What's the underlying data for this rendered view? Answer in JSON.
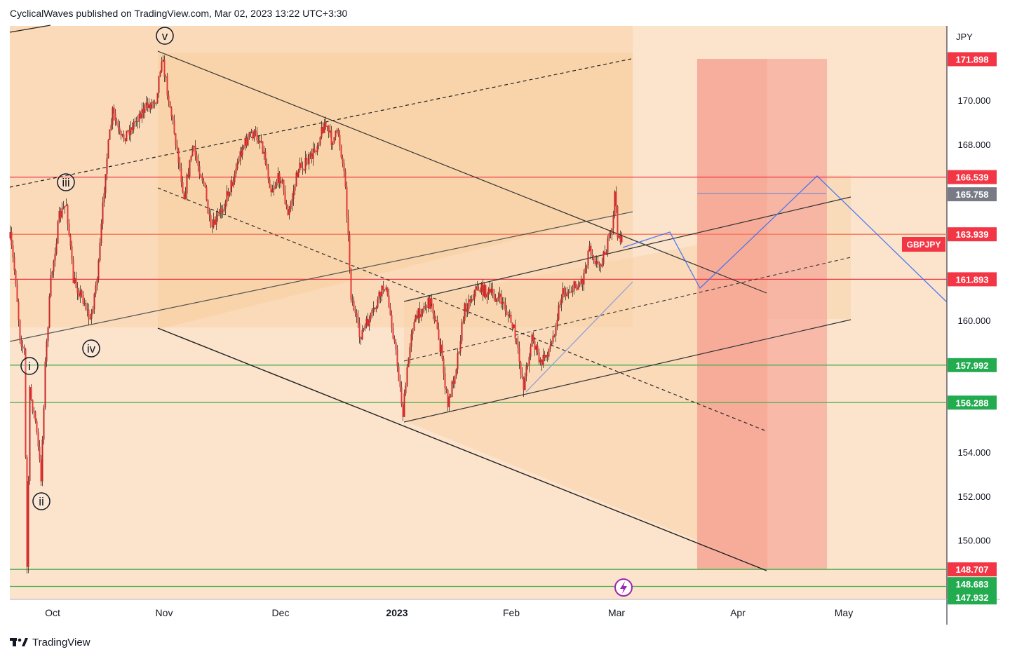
{
  "header": {
    "author": "CyclicalWaves",
    "published_text": "CyclicalWaves published on TradingView.com, Mar 02, 2023 13:22 UTC+3:30"
  },
  "footer": {
    "brand": "TradingView"
  },
  "chart_data": {
    "type": "candlestick",
    "symbol": "GBPJPY",
    "currency_label": "JPY",
    "x_ticks": [
      "Oct",
      "Nov",
      "Dec",
      "2023",
      "Feb",
      "Mar",
      "Apr",
      "May"
    ],
    "y_ticks": [
      170.0,
      168.0,
      160.0,
      154.0,
      152.0,
      150.0
    ],
    "y_tick_labels": [
      "170.000",
      "168.000",
      "160.000",
      "154.000",
      "152.000",
      "150.000"
    ],
    "ylim": [
      147.9,
      173.0
    ],
    "price_labels": [
      {
        "value": 171.898,
        "label": "171.898",
        "color": "#f23645"
      },
      {
        "value": 166.539,
        "label": "166.539",
        "color": "#f23645"
      },
      {
        "value": 165.758,
        "label": "165.758",
        "color": "#787b86"
      },
      {
        "value": 163.939,
        "label": "163.939",
        "color": "#f23645"
      },
      {
        "value": 161.893,
        "label": "161.893",
        "color": "#f23645"
      },
      {
        "value": 157.992,
        "label": "157.992",
        "color": "#22ab4f"
      },
      {
        "value": 156.288,
        "label": "156.288",
        "color": "#22ab4f"
      },
      {
        "value": 148.707,
        "label": "148.707",
        "color": "#f23645"
      },
      {
        "value": 148.683,
        "label": "148.683",
        "color": "#22ab4f"
      },
      {
        "value": 147.932,
        "label": "147.932",
        "color": "#22ab4f"
      }
    ],
    "horizontal_levels": [
      {
        "value": 166.539,
        "color": "#f23645"
      },
      {
        "value": 163.939,
        "color": "#f7775a"
      },
      {
        "value": 161.893,
        "color": "#f23645"
      },
      {
        "value": 157.992,
        "color": "#4caf50"
      },
      {
        "value": 156.288,
        "color": "#4caf50"
      },
      {
        "value": 148.707,
        "color": "#4caf50"
      },
      {
        "value": 147.932,
        "color": "#4caf50"
      }
    ],
    "wave_labels": [
      "i",
      "ii",
      "iii",
      "iv",
      "v"
    ],
    "last_price_tag": "GBPJPY",
    "grid": false,
    "colors": {
      "background": "#fbe3cc",
      "channel_fill": "#f9d4a9",
      "target_zone": "#f7a79a",
      "candle": "#e03a2c",
      "projection": "#3b6ef5"
    }
  }
}
